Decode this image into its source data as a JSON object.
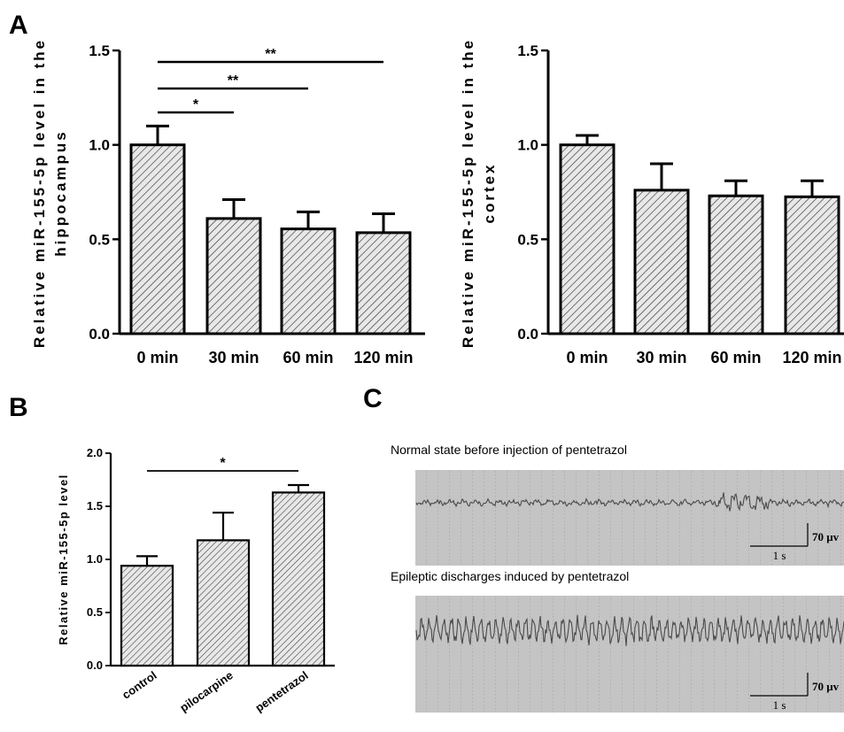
{
  "panels": {
    "a": "A",
    "b": "B",
    "c": "C"
  },
  "chart_data": [
    {
      "type": "bar",
      "panel": "A",
      "ylabel": [
        "Relative miR-155-5p level in the",
        "hippocampus"
      ],
      "categories": [
        "0 min",
        "30 min",
        "60 min",
        "120 min"
      ],
      "values": [
        1.0,
        0.61,
        0.555,
        0.535
      ],
      "errors": [
        0.1,
        0.1,
        0.09,
        0.1
      ],
      "ylim": [
        0,
        1.5
      ],
      "yticks": [
        "0.0",
        "0.5",
        "1.0",
        "1.5"
      ],
      "significance": [
        {
          "from": 0,
          "to": 1,
          "label": "*"
        },
        {
          "from": 0,
          "to": 2,
          "label": "**"
        },
        {
          "from": 0,
          "to": 3,
          "label": "**"
        }
      ]
    },
    {
      "type": "bar",
      "panel": "A",
      "ylabel": [
        "Relative miR-155-5p level in the",
        "cortex"
      ],
      "categories": [
        "0 min",
        "30 min",
        "60 min",
        "120 min"
      ],
      "values": [
        1.0,
        0.76,
        0.73,
        0.725
      ],
      "errors": [
        0.05,
        0.14,
        0.08,
        0.085
      ],
      "ylim": [
        0,
        1.5
      ],
      "yticks": [
        "0.0",
        "0.5",
        "1.0",
        "1.5"
      ],
      "significance": []
    },
    {
      "type": "bar",
      "panel": "B",
      "ylabel": [
        "Relative miR-155-5p level"
      ],
      "categories": [
        "control",
        "pilocarpine",
        "pentetrazol"
      ],
      "values": [
        0.94,
        1.18,
        1.63
      ],
      "errors": [
        0.09,
        0.26,
        0.07
      ],
      "ylim": [
        0,
        2.0
      ],
      "yticks": [
        "0.0",
        "0.5",
        "1.0",
        "1.5",
        "2.0"
      ],
      "significance": [
        {
          "from": 0,
          "to": 2,
          "label": "*"
        }
      ]
    }
  ],
  "eeg": {
    "normal": {
      "caption": "Normal state before injection of pentetrazol",
      "scale_time": "1 s",
      "scale_amp": "70 μv"
    },
    "epileptic": {
      "caption": "Epileptic discharges induced by pentetrazol",
      "scale_time": "1 s",
      "scale_amp": "70 μv"
    }
  }
}
